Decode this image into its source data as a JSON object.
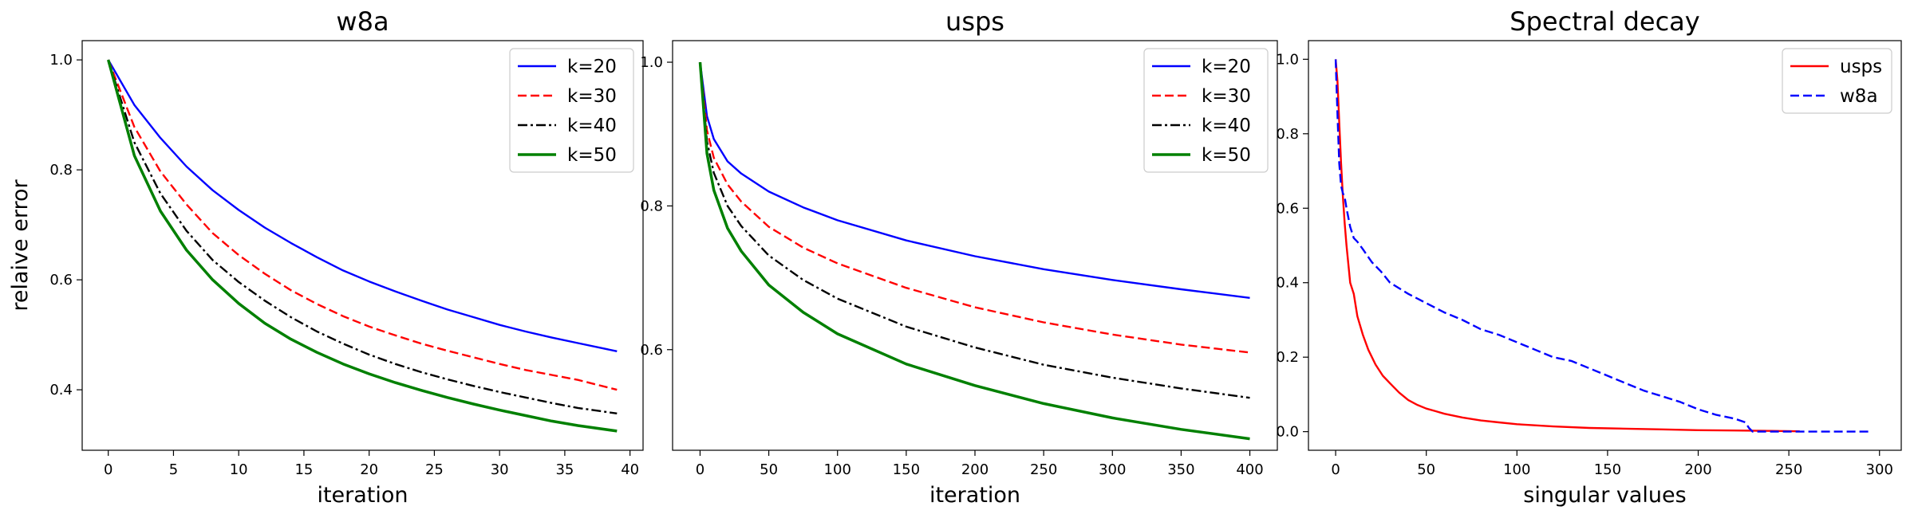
{
  "chart_data": [
    {
      "type": "line",
      "title": "w8a",
      "xlabel": "iteration",
      "ylabel": "relaive error",
      "xlim": [
        -2,
        41
      ],
      "ylim": [
        0.29,
        1.035
      ],
      "xticks": [
        0,
        5,
        10,
        15,
        20,
        25,
        30,
        35,
        40
      ],
      "yticks": [
        0.4,
        0.6,
        0.8,
        1.0
      ],
      "legend_position": "top-right",
      "series": [
        {
          "name": "k=20",
          "color": "#0000ff",
          "dash": "solid",
          "width": "normal",
          "x": [
            0,
            2,
            4,
            6,
            8,
            10,
            12,
            14,
            16,
            18,
            20,
            22,
            24,
            26,
            28,
            30,
            32,
            34,
            36,
            39
          ],
          "y": [
            1.0,
            0.918,
            0.858,
            0.806,
            0.763,
            0.727,
            0.695,
            0.667,
            0.641,
            0.617,
            0.597,
            0.579,
            0.562,
            0.546,
            0.532,
            0.518,
            0.506,
            0.495,
            0.485,
            0.47
          ]
        },
        {
          "name": "k=30",
          "color": "#ff0000",
          "dash": "dashed",
          "width": "normal",
          "x": [
            0,
            2,
            4,
            6,
            8,
            10,
            12,
            14,
            16,
            18,
            20,
            22,
            24,
            26,
            28,
            30,
            32,
            34,
            36,
            39
          ],
          "y": [
            1.0,
            0.878,
            0.797,
            0.737,
            0.685,
            0.645,
            0.611,
            0.581,
            0.556,
            0.534,
            0.515,
            0.499,
            0.484,
            0.471,
            0.459,
            0.447,
            0.436,
            0.427,
            0.418,
            0.4
          ]
        },
        {
          "name": "k=40",
          "color": "#000000",
          "dash": "dashdot",
          "width": "normal",
          "x": [
            0,
            2,
            4,
            6,
            8,
            10,
            12,
            14,
            16,
            18,
            20,
            22,
            24,
            26,
            28,
            30,
            32,
            34,
            36,
            39
          ],
          "y": [
            1.0,
            0.85,
            0.757,
            0.689,
            0.636,
            0.596,
            0.562,
            0.532,
            0.506,
            0.484,
            0.464,
            0.447,
            0.432,
            0.419,
            0.407,
            0.396,
            0.386,
            0.376,
            0.367,
            0.357
          ]
        },
        {
          "name": "k=50",
          "color": "#008000",
          "dash": "solid",
          "width": "thick",
          "x": [
            0,
            2,
            4,
            6,
            8,
            10,
            12,
            14,
            16,
            18,
            20,
            22,
            24,
            26,
            28,
            30,
            32,
            34,
            36,
            39
          ],
          "y": [
            1.0,
            0.826,
            0.725,
            0.654,
            0.6,
            0.557,
            0.521,
            0.492,
            0.468,
            0.447,
            0.429,
            0.413,
            0.399,
            0.386,
            0.374,
            0.363,
            0.353,
            0.343,
            0.335,
            0.325
          ]
        }
      ]
    },
    {
      "type": "line",
      "title": "usps",
      "xlabel": "iteration",
      "ylabel": "",
      "xlim": [
        -20,
        420
      ],
      "ylim": [
        0.46,
        1.03
      ],
      "xticks": [
        0,
        50,
        100,
        150,
        200,
        250,
        300,
        350,
        400
      ],
      "yticks": [
        0.6,
        0.8,
        1.0
      ],
      "legend_position": "top-right",
      "series": [
        {
          "name": "k=20",
          "color": "#0000ff",
          "dash": "solid",
          "width": "normal",
          "x": [
            0,
            5,
            10,
            20,
            30,
            50,
            75,
            100,
            150,
            200,
            250,
            300,
            350,
            400
          ],
          "y": [
            1.0,
            0.925,
            0.893,
            0.862,
            0.845,
            0.82,
            0.798,
            0.78,
            0.752,
            0.73,
            0.712,
            0.697,
            0.684,
            0.672
          ]
        },
        {
          "name": "k=30",
          "color": "#ff0000",
          "dash": "dashed",
          "width": "normal",
          "x": [
            0,
            5,
            10,
            20,
            30,
            50,
            75,
            100,
            150,
            200,
            250,
            300,
            350,
            400
          ],
          "y": [
            1.0,
            0.905,
            0.867,
            0.83,
            0.806,
            0.771,
            0.742,
            0.72,
            0.686,
            0.659,
            0.638,
            0.621,
            0.607,
            0.596
          ]
        },
        {
          "name": "k=40",
          "color": "#000000",
          "dash": "dashdot",
          "width": "normal",
          "x": [
            0,
            5,
            10,
            20,
            30,
            50,
            75,
            100,
            150,
            200,
            250,
            300,
            350,
            400
          ],
          "y": [
            1.0,
            0.89,
            0.846,
            0.8,
            0.772,
            0.731,
            0.697,
            0.671,
            0.632,
            0.603,
            0.579,
            0.561,
            0.546,
            0.533
          ]
        },
        {
          "name": "k=50",
          "color": "#008000",
          "dash": "solid",
          "width": "thick",
          "x": [
            0,
            5,
            10,
            20,
            30,
            50,
            75,
            100,
            150,
            200,
            250,
            300,
            350,
            400
          ],
          "y": [
            1.0,
            0.873,
            0.822,
            0.769,
            0.737,
            0.69,
            0.652,
            0.622,
            0.58,
            0.55,
            0.525,
            0.505,
            0.489,
            0.476
          ]
        }
      ]
    },
    {
      "type": "line",
      "title": "Spectral decay",
      "xlabel": "singular values",
      "ylabel": "",
      "xlim": [
        -15,
        312
      ],
      "ylim": [
        -0.05,
        1.05
      ],
      "xticks": [
        0,
        50,
        100,
        150,
        200,
        250,
        300
      ],
      "yticks": [
        0.0,
        0.2,
        0.4,
        0.6,
        0.8,
        1.0
      ],
      "legend_position": "top-right",
      "series": [
        {
          "name": "usps",
          "color": "#ff0000",
          "dash": "solid",
          "width": "normal",
          "x": [
            0,
            1,
            2,
            3,
            4,
            5,
            6,
            7,
            8,
            10,
            12,
            15,
            18,
            22,
            26,
            30,
            35,
            40,
            45,
            50,
            55,
            60,
            70,
            80,
            90,
            100,
            120,
            140,
            160,
            180,
            200,
            220,
            240,
            256
          ],
          "y": [
            1.0,
            0.94,
            0.83,
            0.72,
            0.63,
            0.56,
            0.5,
            0.45,
            0.4,
            0.37,
            0.31,
            0.26,
            0.22,
            0.18,
            0.15,
            0.13,
            0.105,
            0.085,
            0.072,
            0.062,
            0.055,
            0.048,
            0.038,
            0.03,
            0.025,
            0.02,
            0.014,
            0.01,
            0.008,
            0.006,
            0.004,
            0.003,
            0.002,
            0.001
          ]
        },
        {
          "name": "w8a",
          "color": "#0000ff",
          "dash": "dashed",
          "width": "normal",
          "x": [
            0,
            1,
            2,
            3,
            4,
            5,
            6,
            8,
            10,
            12,
            15,
            20,
            25,
            30,
            40,
            50,
            60,
            70,
            80,
            90,
            100,
            110,
            120,
            130,
            140,
            150,
            160,
            170,
            180,
            190,
            200,
            210,
            220,
            226,
            228,
            230,
            240,
            260,
            280,
            296
          ],
          "y": [
            1.0,
            0.85,
            0.72,
            0.66,
            0.64,
            0.63,
            0.6,
            0.55,
            0.52,
            0.51,
            0.49,
            0.455,
            0.43,
            0.4,
            0.37,
            0.345,
            0.32,
            0.3,
            0.275,
            0.26,
            0.24,
            0.22,
            0.2,
            0.19,
            0.17,
            0.15,
            0.13,
            0.11,
            0.095,
            0.08,
            0.06,
            0.045,
            0.035,
            0.025,
            0.01,
            0.0,
            0.0,
            0.0,
            0.0,
            0.0
          ]
        }
      ]
    }
  ]
}
